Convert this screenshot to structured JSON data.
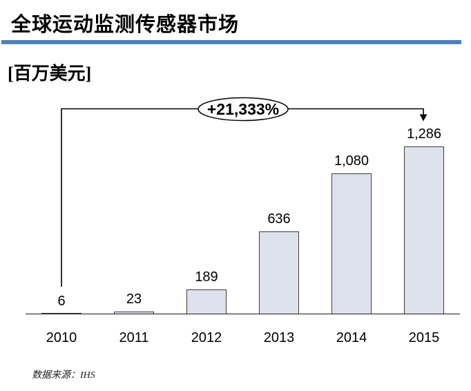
{
  "header": {
    "title": "全球运动监测传感器市场",
    "unit_label": "[百万美元]"
  },
  "annotation": {
    "growth_label": "+21,333%"
  },
  "source": {
    "prefix": "数据来源：",
    "name": "IHS"
  },
  "colors": {
    "accent_rule": "#4f81bd",
    "bar_fill": "#dde2ec",
    "bar_border": "#3b3b3b",
    "axis_line": "#1c1c1c",
    "ink": "#000000"
  },
  "chart_data": {
    "type": "bar",
    "title": "全球运动监测传感器市场",
    "unit": "百万美元",
    "categories": [
      "2010",
      "2011",
      "2012",
      "2013",
      "2014",
      "2015"
    ],
    "values": [
      6,
      23,
      189,
      636,
      1080,
      1286
    ],
    "value_labels": [
      "6",
      "23",
      "189",
      "636",
      "1,080",
      "1,286"
    ],
    "growth_annotation": "+21,333%",
    "annotation_span": {
      "from": "2010",
      "to": "2015"
    },
    "xlabel": "",
    "ylabel": "百万美元",
    "ylim": [
      0,
      1350
    ],
    "grid": false,
    "legend": false,
    "source": "IHS"
  }
}
